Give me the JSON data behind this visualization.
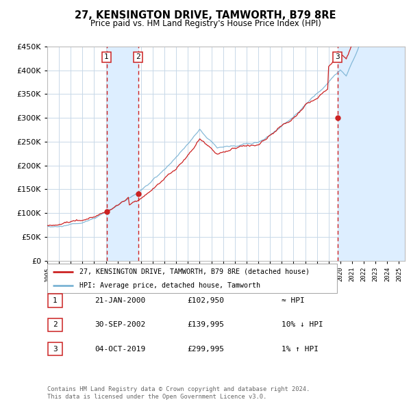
{
  "title": "27, KENSINGTON DRIVE, TAMWORTH, B79 8RE",
  "subtitle": "Price paid vs. HM Land Registry's House Price Index (HPI)",
  "legend_line1": "27, KENSINGTON DRIVE, TAMWORTH, B79 8RE (detached house)",
  "legend_line2": "HPI: Average price, detached house, Tamworth",
  "footer1": "Contains HM Land Registry data © Crown copyright and database right 2024.",
  "footer2": "This data is licensed under the Open Government Licence v3.0.",
  "transactions": [
    {
      "num": 1,
      "date": "21-JAN-2000",
      "price": 102950,
      "rel": "≈ HPI"
    },
    {
      "num": 2,
      "date": "30-SEP-2002",
      "price": 139995,
      "rel": "10% ↓ HPI"
    },
    {
      "num": 3,
      "date": "04-OCT-2019",
      "price": 299995,
      "rel": "1% ↑ HPI"
    }
  ],
  "sale_dates_num": [
    2000.054794520548,
    2002.7479452054795,
    2019.7534246575342
  ],
  "sale_prices": [
    102950,
    139995,
    299995
  ],
  "hpi_color": "#7ab3d4",
  "price_color": "#cc2222",
  "vline_color": "#cc2222",
  "shade_color": "#ddeeff",
  "background_color": "#ffffff",
  "grid_color": "#c8d8e8",
  "ylim": [
    0,
    450000
  ],
  "xlim_start": 1995.0,
  "xlim_end": 2025.5,
  "xtick_years": [
    1995,
    1996,
    1997,
    1998,
    1999,
    2000,
    2001,
    2002,
    2003,
    2004,
    2005,
    2006,
    2007,
    2008,
    2009,
    2010,
    2011,
    2012,
    2013,
    2014,
    2015,
    2016,
    2017,
    2018,
    2019,
    2020,
    2021,
    2022,
    2023,
    2024,
    2025
  ]
}
